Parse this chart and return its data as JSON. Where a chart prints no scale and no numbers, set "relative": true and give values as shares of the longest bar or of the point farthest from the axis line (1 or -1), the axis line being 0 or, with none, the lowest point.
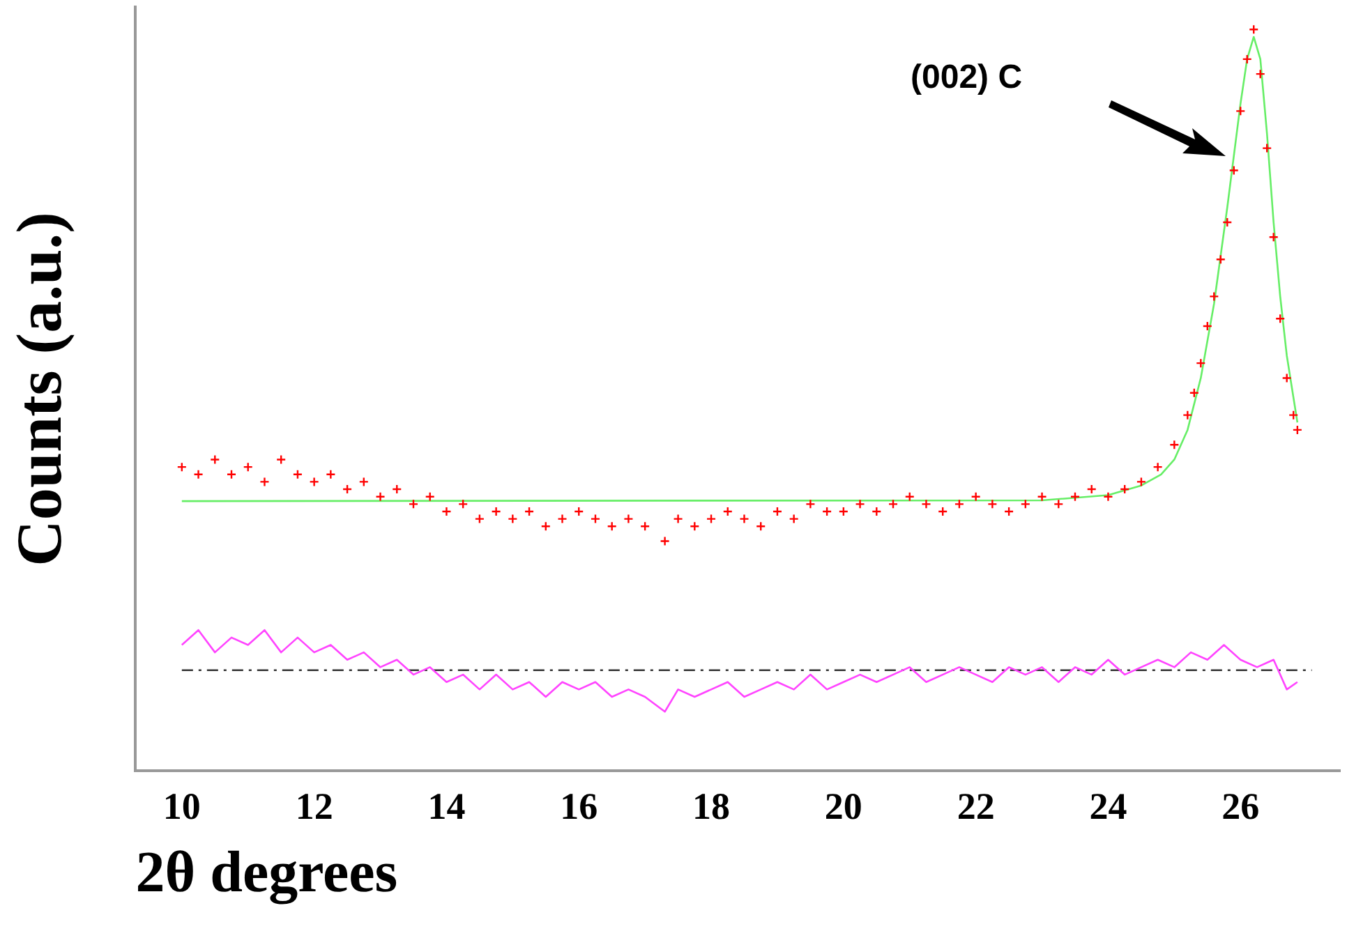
{
  "chart_data": {
    "type": "scatter",
    "xlabel": "2θ degrees",
    "ylabel": "Counts (a.u.)",
    "relative": true,
    "xlim": [
      9.3,
      27.5
    ],
    "xticks": [
      10,
      12,
      14,
      16,
      18,
      20,
      22,
      24,
      26
    ],
    "grid": false,
    "legend": false,
    "x": [
      10,
      10.25,
      10.5,
      10.75,
      11,
      11.25,
      11.5,
      11.75,
      12,
      12.25,
      12.5,
      12.75,
      13,
      13.25,
      13.5,
      13.75,
      14,
      14.25,
      14.5,
      14.75,
      15,
      15.25,
      15.5,
      15.75,
      16,
      16.25,
      16.5,
      16.75,
      17,
      17.3,
      17.5,
      17.75,
      18,
      18.25,
      18.5,
      18.75,
      19,
      19.25,
      19.5,
      19.75,
      20,
      20.25,
      20.5,
      20.75,
      21,
      21.25,
      21.5,
      21.75,
      22,
      22.25,
      22.5,
      22.75,
      23,
      23.25,
      23.5,
      23.75,
      24,
      24.25,
      24.5,
      24.75,
      25,
      25.2,
      25.3,
      25.4,
      25.5,
      25.6,
      25.7,
      25.8,
      25.9,
      26,
      26.1,
      26.2,
      26.3,
      26.4,
      26.5,
      26.6,
      26.7,
      26.8,
      26.86
    ],
    "series": [
      {
        "marker": "cross",
        "color": "#ff0000",
        "values": [
          0.41,
          0.4,
          0.42,
          0.4,
          0.41,
          0.39,
          0.42,
          0.4,
          0.39,
          0.4,
          0.38,
          0.39,
          0.37,
          0.38,
          0.36,
          0.37,
          0.35,
          0.36,
          0.34,
          0.35,
          0.34,
          0.35,
          0.33,
          0.34,
          0.35,
          0.34,
          0.33,
          0.34,
          0.33,
          0.31,
          0.34,
          0.33,
          0.34,
          0.35,
          0.34,
          0.33,
          0.35,
          0.34,
          0.36,
          0.35,
          0.35,
          0.36,
          0.35,
          0.36,
          0.37,
          0.36,
          0.35,
          0.36,
          0.37,
          0.36,
          0.35,
          0.36,
          0.37,
          0.36,
          0.37,
          0.38,
          0.37,
          0.38,
          0.39,
          0.41,
          0.44,
          0.48,
          0.51,
          0.55,
          0.6,
          0.64,
          0.69,
          0.74,
          0.81,
          0.89,
          0.96,
          1,
          0.94,
          0.84,
          0.72,
          0.61,
          0.53,
          0.48,
          0.46
        ]
      },
      {
        "type": "line",
        "marker": "none",
        "color": "#66ee66",
        "x": [
          10,
          23,
          24,
          24.5,
          24.8,
          25,
          25.2,
          25.4,
          25.6,
          25.8,
          26,
          26.1,
          26.2,
          26.3,
          26.4,
          26.5,
          26.6,
          26.7,
          26.86
        ],
        "values": [
          0.364,
          0.365,
          0.372,
          0.385,
          0.4,
          0.42,
          0.46,
          0.53,
          0.63,
          0.76,
          0.9,
          0.96,
          0.99,
          0.96,
          0.86,
          0.74,
          0.64,
          0.56,
          0.47
        ]
      },
      {
        "type": "line",
        "marker": "none",
        "color": "#ff44ff",
        "x": [
          10,
          10.25,
          10.5,
          10.75,
          11,
          11.25,
          11.5,
          11.75,
          12,
          12.25,
          12.5,
          12.75,
          13,
          13.25,
          13.5,
          13.75,
          14,
          14.25,
          14.5,
          14.75,
          15,
          15.25,
          15.5,
          15.75,
          16,
          16.25,
          16.5,
          16.75,
          17,
          17.3,
          17.5,
          17.75,
          18,
          18.25,
          18.5,
          18.75,
          19,
          19.25,
          19.5,
          19.75,
          20,
          20.25,
          20.5,
          20.75,
          21,
          21.25,
          21.5,
          21.75,
          22,
          22.25,
          22.5,
          22.75,
          23,
          23.25,
          23.5,
          23.75,
          24,
          24.25,
          24.5,
          24.75,
          25,
          25.25,
          25.5,
          25.75,
          26,
          26.25,
          26.5,
          26.7,
          26.86
        ],
        "values": [
          0.17,
          0.19,
          0.16,
          0.18,
          0.17,
          0.19,
          0.16,
          0.18,
          0.16,
          0.17,
          0.15,
          0.16,
          0.14,
          0.15,
          0.13,
          0.14,
          0.12,
          0.13,
          0.11,
          0.13,
          0.11,
          0.12,
          0.1,
          0.12,
          0.11,
          0.12,
          0.1,
          0.11,
          0.1,
          0.08,
          0.11,
          0.1,
          0.11,
          0.12,
          0.1,
          0.11,
          0.12,
          0.11,
          0.13,
          0.11,
          0.12,
          0.13,
          0.12,
          0.13,
          0.14,
          0.12,
          0.13,
          0.14,
          0.13,
          0.12,
          0.14,
          0.13,
          0.14,
          0.12,
          0.14,
          0.13,
          0.15,
          0.13,
          0.14,
          0.15,
          0.14,
          0.16,
          0.15,
          0.17,
          0.15,
          0.14,
          0.15,
          0.11,
          0.12
        ]
      }
    ],
    "ref_lines": [
      {
        "axis": "y",
        "value": 0.136,
        "color": "#333333",
        "line_style": "dashed"
      }
    ],
    "annotations": [
      "(002) C"
    ]
  }
}
